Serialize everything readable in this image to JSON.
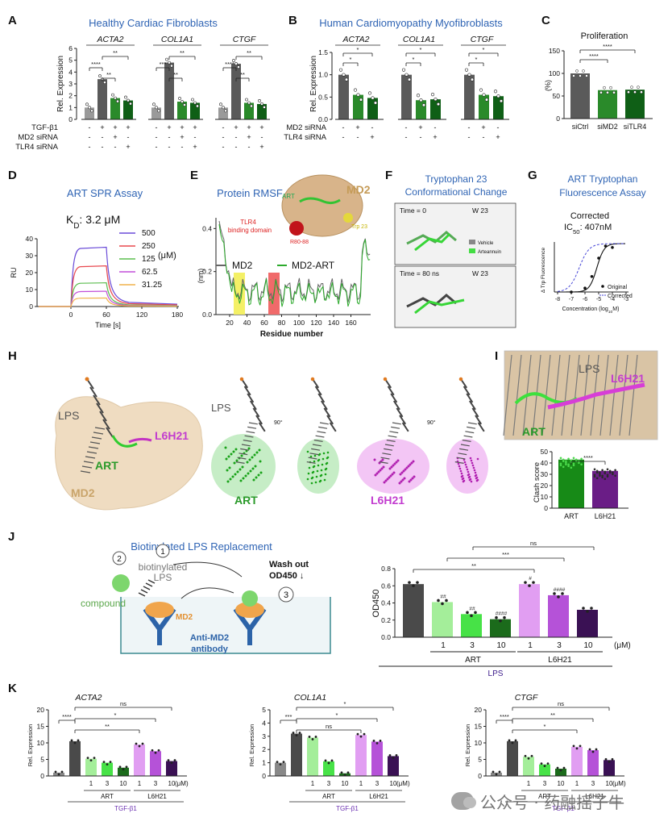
{
  "panels": {
    "A": {
      "letter": "A",
      "title": "Healthy Cardiac Fibroblasts",
      "genes": [
        "ACTA2",
        "COL1A1",
        "CTGF"
      ],
      "ylabel": "Rel. Expression",
      "yticks": [
        "0",
        "1",
        "2",
        "3",
        "4",
        "5",
        "6"
      ],
      "rows": [
        {
          "name": "TGF-β1",
          "signs": [
            "-",
            "+",
            "+",
            "+"
          ]
        },
        {
          "name": "MD2 siRNA",
          "signs": [
            "-",
            "-",
            "+",
            "-"
          ]
        },
        {
          "name": "TLR4 siRNA",
          "signs": [
            "-",
            "-",
            "-",
            "+"
          ]
        }
      ],
      "sig": [
        "****",
        "**",
        "**",
        "***",
        "**",
        "**",
        "****",
        "**",
        "**"
      ],
      "chart_data": {
        "type": "bar",
        "categories": [
          "Ctrl",
          "TGF-β1",
          "TGF-β1+MD2 siRNA",
          "TGF-β1+TLR4 siRNA"
        ],
        "series": [
          {
            "name": "ACTA2",
            "values": [
              1.0,
              3.4,
              1.8,
              1.6
            ]
          },
          {
            "name": "COL1A1",
            "values": [
              1.0,
              4.8,
              1.5,
              1.4
            ]
          },
          {
            "name": "CTGF",
            "values": [
              1.0,
              4.7,
              1.4,
              1.3
            ]
          }
        ],
        "ylim": [
          0,
          6
        ]
      }
    },
    "B": {
      "letter": "B",
      "title": "Human Cardiomyopathy Myofibroblasts",
      "genes": [
        "ACTA2",
        "COL1A1",
        "CTGF"
      ],
      "ylabel": "Rel. Expression",
      "yticks": [
        "0.0",
        "0.5",
        "1.0",
        "1.5"
      ],
      "rows": [
        {
          "name": "MD2 siRNA",
          "signs": [
            "-",
            "+",
            "-"
          ]
        },
        {
          "name": "TLR4 siRNA",
          "signs": [
            "-",
            "-",
            "+"
          ]
        }
      ],
      "sig": [
        "*",
        "*",
        "*",
        "*",
        "*",
        "*"
      ],
      "chart_data": {
        "type": "bar",
        "categories": [
          "Ctrl",
          "MD2 siRNA",
          "TLR4 siRNA"
        ],
        "series": [
          {
            "name": "ACTA2",
            "values": [
              1.0,
              0.55,
              0.48
            ]
          },
          {
            "name": "COL1A1",
            "values": [
              1.0,
              0.43,
              0.45
            ]
          },
          {
            "name": "CTGF",
            "values": [
              1.0,
              0.55,
              0.52
            ]
          }
        ],
        "ylim": [
          0,
          1.5
        ]
      }
    },
    "C": {
      "letter": "C",
      "title": "Proliferation",
      "ylabel": "(%)",
      "yticks": [
        "0",
        "50",
        "100",
        "150"
      ],
      "categories": [
        "siCtrl",
        "siMD2",
        "siTLR4"
      ],
      "sig": [
        "****",
        "****"
      ],
      "chart_data": {
        "type": "bar",
        "categories": [
          "siCtrl",
          "siMD2",
          "siTLR4"
        ],
        "values": [
          100,
          63,
          64
        ],
        "ylim": [
          0,
          150
        ]
      }
    },
    "D": {
      "letter": "D",
      "title": "ART SPR Assay",
      "kd": "K",
      "kd_sub": "D",
      "kd_val": ": 3.2 μM",
      "ylabel": "RU",
      "xlabel": "Time [s]",
      "xticks": [
        "0",
        "60",
        "120",
        "180"
      ],
      "yticks": [
        "0",
        "10",
        "20",
        "30",
        "40"
      ],
      "unit": "(μM)",
      "legend": [
        {
          "label": "500",
          "color": "#6a4bd8"
        },
        {
          "label": "250",
          "color": "#e8484f"
        },
        {
          "label": "125",
          "color": "#5bbd4f"
        },
        {
          "label": "62.5",
          "color": "#c24fd8"
        },
        {
          "label": "31.25",
          "color": "#f0b24a"
        }
      ],
      "chart_data": {
        "type": "line",
        "x_label": "Time [s]",
        "y_label": "RU",
        "xlim": [
          -20,
          180
        ],
        "ylim": [
          0,
          40
        ],
        "series": [
          {
            "name": "500",
            "plateau": 35
          },
          {
            "name": "250",
            "plateau": 24
          },
          {
            "name": "125",
            "plateau": 14
          },
          {
            "name": "62.5",
            "plateau": 9
          },
          {
            "name": "31.25",
            "plateau": 5
          }
        ]
      }
    },
    "E": {
      "letter": "E",
      "title": "Protein RMSF",
      "protein": "MD2",
      "art_label": "ART",
      "tlr4": "TLR4 binding domain",
      "res": "R80-88",
      "trp": "Trp 23",
      "ylabel": "(nm)",
      "xlabel": "Residue number",
      "yticks": [
        "0.0",
        "0.2",
        "0.4"
      ],
      "xticks": [
        "20",
        "40",
        "60",
        "80",
        "100",
        "120",
        "140",
        "160"
      ],
      "legend": [
        "MD2",
        "MD2-ART"
      ]
    },
    "F": {
      "letter": "F",
      "title": "Tryptophan 23 Conformational Change",
      "t0": "Time = 0",
      "t80": "Time = 80 ns",
      "w": "W 23",
      "vehicle": "Vehicle",
      "arteannuin": "Arteannuin"
    },
    "G": {
      "letter": "G",
      "title": "ART Tryptophan Fluorescence Assay",
      "corrected": "Corrected",
      "ic50": "IC",
      "ic50_sub": "50",
      "ic50_val": ": 407nM",
      "ylabel": "Δ Trp Fluorescence",
      "xlabel": "Concentration (log",
      "xlabel_sub": "10",
      "xlabel_end": "M)",
      "xticks": [
        "-8",
        "-7",
        "-6",
        "-5",
        "-4",
        "-3"
      ],
      "legend": [
        "Original",
        "Corrected"
      ]
    },
    "H": {
      "letter": "H",
      "lps": "LPS",
      "art": "ART",
      "l6h21": "L6H21",
      "md2": "MD2",
      "rot": "90°"
    },
    "I": {
      "letter": "I",
      "lps": "LPS",
      "l6h21": "L6H21",
      "art": "ART",
      "ylabel": "Clash score",
      "yticks": [
        "0",
        "10",
        "20",
        "30",
        "40",
        "50"
      ],
      "categories": [
        "ART",
        "L6H21"
      ],
      "sig": "****",
      "chart_data": {
        "type": "bar",
        "categories": [
          "ART",
          "L6H21"
        ],
        "values": [
          43,
          33
        ],
        "ylim": [
          0,
          50
        ]
      }
    },
    "J": {
      "letter": "J",
      "title": "Biotinylated LPS Replacement",
      "step1": "1",
      "step2": "2",
      "step3": "3",
      "biotin": "biotinylated LPS",
      "compound": "compound",
      "md2": "MD2",
      "antibody": "Anti-MD2 antibody",
      "wash": "Wash out",
      "od": "OD450",
      "ylabel": "OD450",
      "yticks": [
        "0.0",
        "0.2",
        "0.4",
        "0.6",
        "0.8"
      ],
      "concs": [
        "1",
        "3",
        "10",
        "1",
        "3",
        "10"
      ],
      "unit": "(μM)",
      "groups": [
        "ART",
        "L6H21"
      ],
      "lps": "LPS",
      "sig_top": [
        "ns",
        "***",
        "**"
      ],
      "sig_bar": [
        "##",
        "##",
        "####",
        "#",
        "####"
      ],
      "chart_data": {
        "type": "bar",
        "categories": [
          "LPS",
          "ART 1",
          "ART 3",
          "ART 10",
          "L6H21 1",
          "L6H21 3",
          "L6H21 10"
        ],
        "values": [
          0.62,
          0.41,
          0.27,
          0.21,
          0.62,
          0.49,
          0.32
        ],
        "ylim": [
          0,
          0.8
        ]
      }
    },
    "K": {
      "letter": "K",
      "genes": [
        "ACTA2",
        "COL1A1",
        "CTGF"
      ],
      "ylabel": "Rel. Expression",
      "tgf": "TGF-β1",
      "groups": [
        "ART",
        "L6H21"
      ],
      "concs": [
        "1",
        "3",
        "10",
        "1",
        "3",
        "10"
      ],
      "unit": "(μM)",
      "yticks": [
        [
          "0",
          "5",
          "10",
          "15",
          "20"
        ],
        [
          "0",
          "1",
          "2",
          "3",
          "4",
          "5"
        ],
        [
          "0",
          "5",
          "10",
          "15",
          "20"
        ]
      ],
      "sig": [
        [
          "****",
          "**",
          "*",
          "ns"
        ],
        [
          "***",
          "ns",
          "*",
          "*"
        ],
        [
          "****",
          "*",
          "**",
          "ns"
        ]
      ],
      "chart_data": [
        {
          "type": "bar",
          "title": "ACTA2",
          "categories": [
            "Ctrl",
            "TGF-β1",
            "ART 1",
            "ART 3",
            "ART 10",
            "L6H21 1",
            "L6H21 3",
            "L6H21 10"
          ],
          "values": [
            1,
            10.5,
            5.2,
            4,
            2.5,
            9.5,
            7.5,
            4.5
          ],
          "ylim": [
            0,
            20
          ]
        },
        {
          "type": "bar",
          "title": "COL1A1",
          "categories": [
            "Ctrl",
            "TGF-β1",
            "ART 1",
            "ART 3",
            "ART 10",
            "L6H21 1",
            "L6H21 3",
            "L6H21 10"
          ],
          "values": [
            1,
            3.2,
            2.9,
            1.1,
            0.2,
            3.1,
            2.6,
            1.5
          ],
          "ylim": [
            0,
            5
          ]
        },
        {
          "type": "bar",
          "title": "CTGF",
          "categories": [
            "Ctrl",
            "TGF-β1",
            "ART 1",
            "ART 3",
            "ART 10",
            "L6H21 1",
            "L6H21 3",
            "L6H21 10"
          ],
          "values": [
            1,
            10.5,
            5.8,
            3.5,
            2.2,
            8.8,
            7.8,
            4.8
          ],
          "ylim": [
            0,
            20
          ]
        }
      ]
    }
  },
  "watermark": "公众号 · 药融摇子牛",
  "colors": {
    "gray": "#5a5a5a",
    "lightgray": "#9a9a9a",
    "green": "#2a8a2a",
    "darkgreen": "#0f5f16",
    "brightgreen": "#3fe03f",
    "title": "#2f64b4",
    "violet": "#b552d8",
    "lightviolet": "#e199f3",
    "purple": "#5b1f7a",
    "sig": "#222"
  }
}
